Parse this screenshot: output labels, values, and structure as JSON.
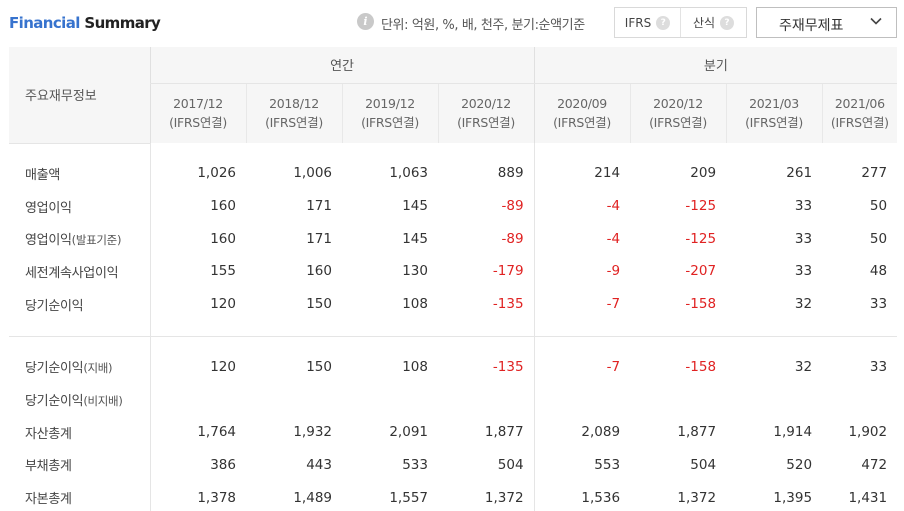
{
  "header": {
    "title_part1": "Financial",
    "title_part2": " Summary",
    "info_icon_glyph": "i",
    "unit_text": "단위: 억원, %, 배, 천주, 분기:순액기준",
    "toggle": [
      {
        "label": "IFRS",
        "help": "?"
      },
      {
        "label": "산식",
        "help": "?"
      }
    ],
    "statement_select": "주재무제표"
  },
  "table": {
    "corner_label": "주요재무정보",
    "groups": [
      "연간",
      "분기"
    ],
    "periods": [
      {
        "date": "2017/12",
        "basis": "(IFRS연결)"
      },
      {
        "date": "2018/12",
        "basis": "(IFRS연결)"
      },
      {
        "date": "2019/12",
        "basis": "(IFRS연결)"
      },
      {
        "date": "2020/12",
        "basis": "(IFRS연결)"
      },
      {
        "date": "2020/09",
        "basis": "(IFRS연결)"
      },
      {
        "date": "2020/12",
        "basis": "(IFRS연결)"
      },
      {
        "date": "2021/03",
        "basis": "(IFRS연결)"
      },
      {
        "date": "2021/06",
        "basis": "(IFRS연결)"
      }
    ],
    "rows": [
      {
        "label": "매출액",
        "sub": "",
        "values": [
          "1,026",
          "1,006",
          "1,063",
          "889",
          "214",
          "209",
          "261",
          "277"
        ]
      },
      {
        "label": "영업이익",
        "sub": "",
        "values": [
          "160",
          "171",
          "145",
          "-89",
          "-4",
          "-125",
          "33",
          "50"
        ]
      },
      {
        "label": "영업이익",
        "sub": "(발표기준)",
        "values": [
          "160",
          "171",
          "145",
          "-89",
          "-4",
          "-125",
          "33",
          "50"
        ]
      },
      {
        "label": "세전계속사업이익",
        "sub": "",
        "values": [
          "155",
          "160",
          "130",
          "-179",
          "-9",
          "-207",
          "33",
          "48"
        ]
      },
      {
        "label": "당기순이익",
        "sub": "",
        "values": [
          "120",
          "150",
          "108",
          "-135",
          "-7",
          "-158",
          "32",
          "33"
        ]
      },
      {
        "label": "당기순이익",
        "sub": "(지배)",
        "values": [
          "120",
          "150",
          "108",
          "-135",
          "-7",
          "-158",
          "32",
          "33"
        ]
      },
      {
        "label": "당기순이익",
        "sub": "(비지배)",
        "values": [
          "",
          "",
          "",
          "",
          "",
          "",
          "",
          ""
        ]
      },
      {
        "label": "자산총계",
        "sub": "",
        "values": [
          "1,764",
          "1,932",
          "2,091",
          "1,877",
          "2,089",
          "1,877",
          "1,914",
          "1,902"
        ]
      },
      {
        "label": "부채총계",
        "sub": "",
        "values": [
          "386",
          "443",
          "533",
          "504",
          "553",
          "504",
          "520",
          "472"
        ]
      },
      {
        "label": "자본총계",
        "sub": "",
        "values": [
          "1,378",
          "1,489",
          "1,557",
          "1,372",
          "1,536",
          "1,372",
          "1,395",
          "1,431"
        ]
      }
    ]
  },
  "colors": {
    "title_accent": "#3773ce",
    "negative": "#e02222",
    "header_bg": "#f6f6f6"
  }
}
